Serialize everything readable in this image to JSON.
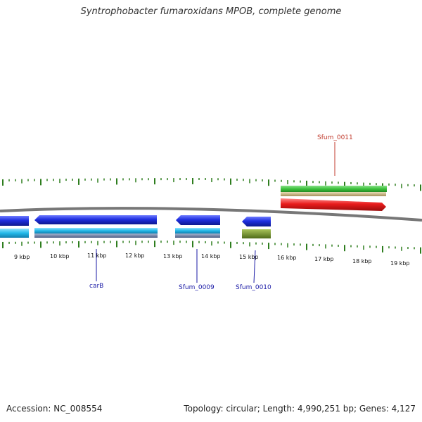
{
  "title": "Syntrophobacter fumaroxidans MPOB, complete genome",
  "footer": {
    "accession": "Accession: NC_008554",
    "summary": "Topology: circular; Length: 4,990,251 bp; Genes: 4,127"
  },
  "scale_labels": [
    "9 kbp",
    "10 kbp",
    "11 kbp",
    "12 kbp",
    "13 kbp",
    "14 kbp",
    "15 kbp",
    "16 kbp",
    "17 kbp",
    "18 kbp",
    "19 kbp"
  ],
  "gene_labels": [
    {
      "text": "Sfum_0011",
      "color": "#c0392b"
    },
    {
      "text": "carB",
      "color": "#1a1aa6"
    },
    {
      "text": "Sfum_0009",
      "color": "#1a1aa6"
    },
    {
      "text": "Sfum_0010",
      "color": "#1a1aa6"
    }
  ],
  "colors": {
    "backbone": "#777777",
    "ticks": "#2e7d1e",
    "cds_reverse": "#1f2fe0",
    "cds_forward": "#e81c1c",
    "gene_forward": "#3cc43c",
    "rna_band": "#cdb98a",
    "gene_reverse": "#22b8e8",
    "gene_band": "#6b7fa6",
    "other_gene": "#6e8f2a"
  }
}
